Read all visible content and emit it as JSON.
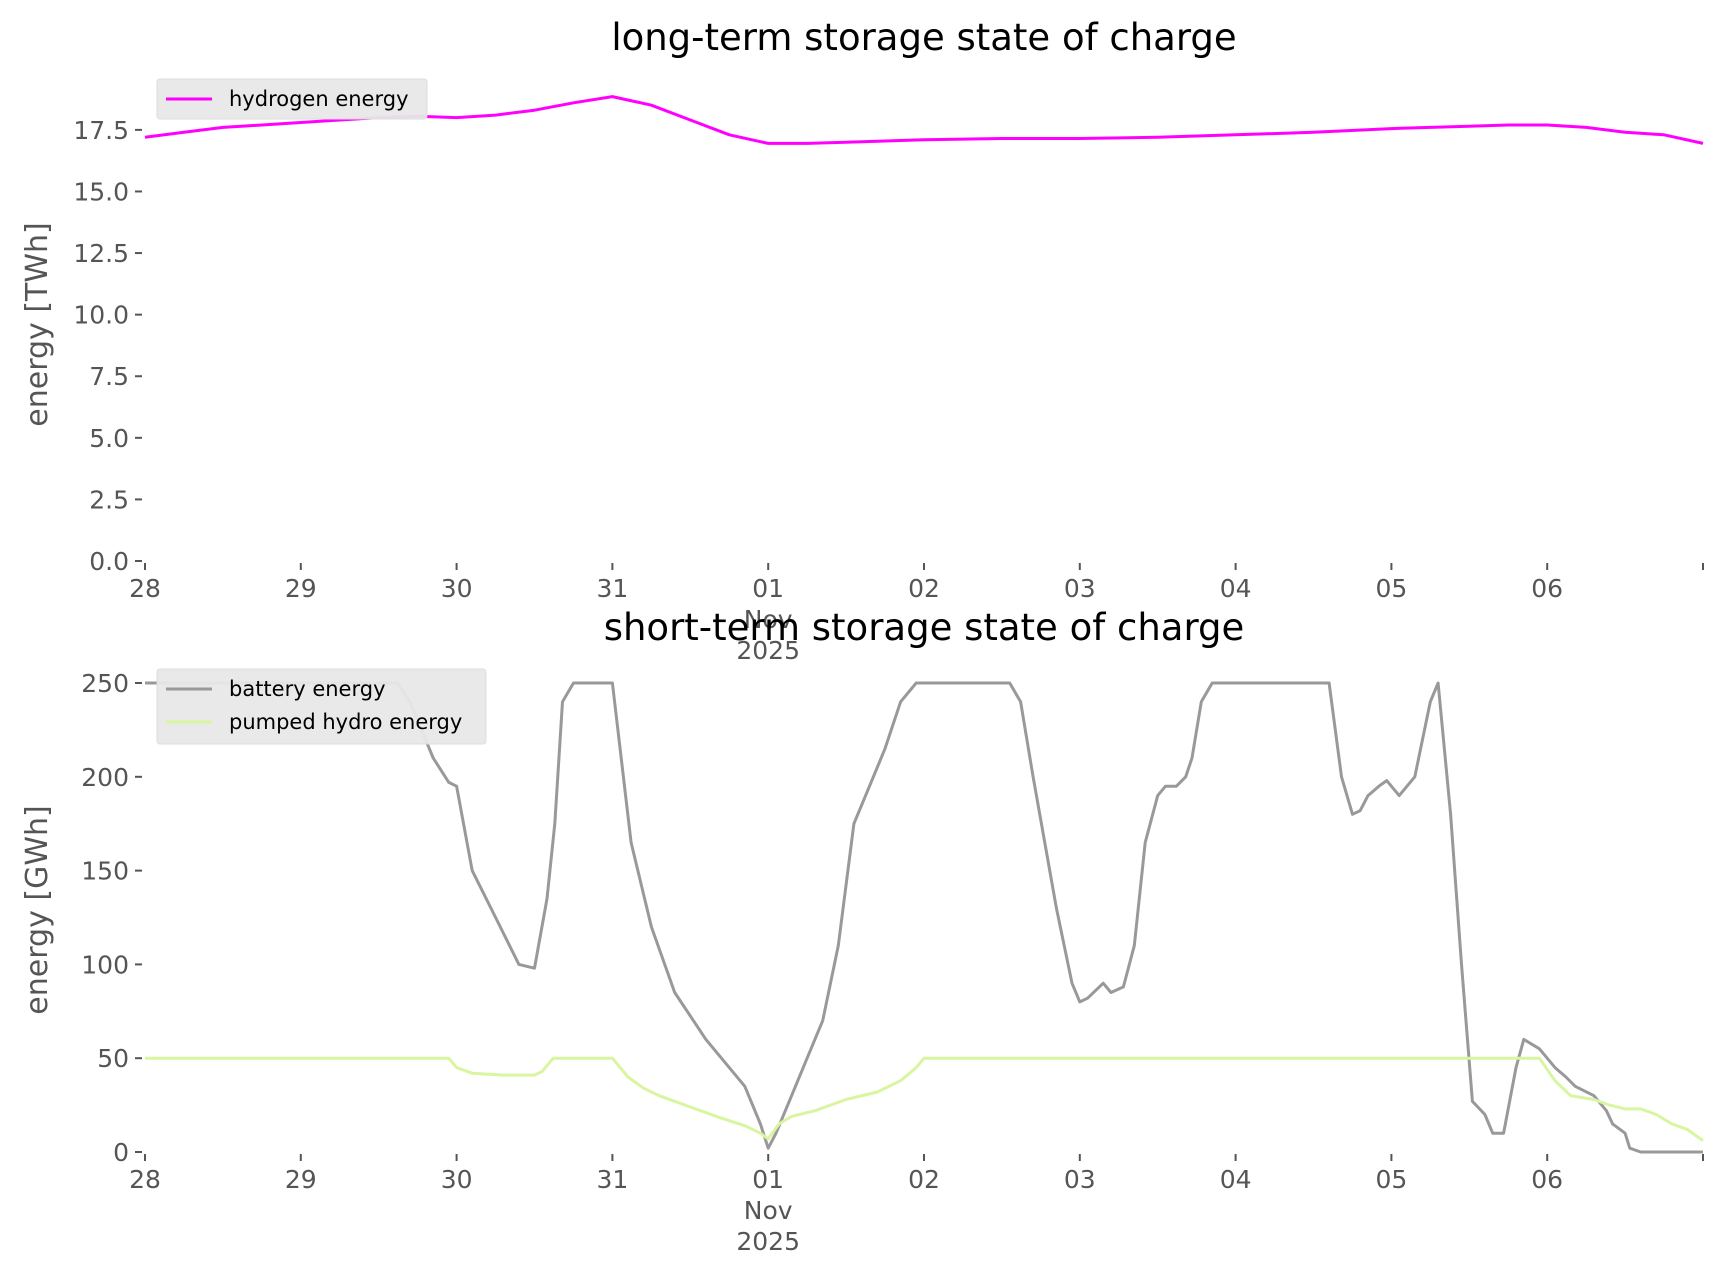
{
  "chart_data": [
    {
      "type": "line",
      "title": "long-term storage state of charge",
      "ylabel": "energy [TWh]",
      "xlabel": "",
      "xlim": [
        "2025-10-28",
        "2025-11-07"
      ],
      "ylim": [
        0,
        19.2
      ],
      "yticks": [
        "0.0",
        "2.5",
        "5.0",
        "7.5",
        "10.0",
        "12.5",
        "15.0",
        "17.5"
      ],
      "xticks": [
        "28",
        "29",
        "30",
        "31",
        "01\nNov\n2025",
        "02",
        "03",
        "04",
        "05",
        "06"
      ],
      "grid": false,
      "legend_position": "top-left",
      "series": [
        {
          "name": "hydrogen energy",
          "color": "#ff00ff",
          "x": [
            0,
            0.25,
            0.5,
            0.75,
            1.0,
            1.25,
            1.5,
            1.75,
            2.0,
            2.25,
            2.5,
            2.75,
            3.0,
            3.25,
            3.5,
            3.75,
            4.0,
            4.25,
            4.5,
            4.75,
            5.0,
            5.5,
            6.0,
            6.5,
            7.0,
            7.5,
            8.0,
            8.25,
            8.5,
            8.75,
            9.0,
            9.25,
            9.5,
            9.75,
            10.0
          ],
          "y": [
            17.2,
            17.4,
            17.6,
            17.7,
            17.8,
            17.9,
            18.0,
            18.05,
            18.0,
            18.1,
            18.3,
            18.6,
            18.85,
            18.5,
            17.9,
            17.3,
            16.95,
            16.95,
            17.0,
            17.05,
            17.1,
            17.15,
            17.15,
            17.2,
            17.3,
            17.4,
            17.55,
            17.6,
            17.65,
            17.7,
            17.7,
            17.6,
            17.4,
            17.3,
            16.95
          ]
        }
      ]
    },
    {
      "type": "line",
      "title": "short-term storage state of charge",
      "ylabel": "energy [GWh]",
      "xlabel": "",
      "xlim": [
        "2025-10-28",
        "2025-11-07"
      ],
      "ylim": [
        0,
        258
      ],
      "yticks": [
        "0",
        "50",
        "100",
        "150",
        "200",
        "250"
      ],
      "xticks": [
        "28",
        "29",
        "30",
        "31",
        "01\nNov\n2025",
        "02",
        "03",
        "04",
        "05",
        "06"
      ],
      "grid": false,
      "legend_position": "top-left",
      "series": [
        {
          "name": "battery energy",
          "color": "#999999",
          "x": [
            0,
            1.0,
            1.62,
            1.7,
            1.85,
            1.95,
            2.0,
            2.1,
            2.25,
            2.4,
            2.5,
            2.58,
            2.63,
            2.68,
            2.75,
            2.8,
            2.87,
            3.0,
            3.12,
            3.25,
            3.4,
            3.6,
            3.85,
            3.95,
            4.0,
            4.05,
            4.15,
            4.25,
            4.35,
            4.45,
            4.55,
            4.65,
            4.75,
            4.85,
            4.95,
            5.0,
            5.55,
            5.62,
            5.7,
            5.85,
            5.95,
            6.0,
            6.05,
            6.15,
            6.2,
            6.28,
            6.35,
            6.42,
            6.5,
            6.55,
            6.62,
            6.68,
            6.72,
            6.78,
            6.85,
            6.92,
            7.0,
            7.6,
            7.68,
            7.75,
            7.8,
            7.85,
            7.92,
            7.97,
            8.05,
            8.15,
            8.25,
            8.3,
            8.38,
            8.45,
            8.52,
            8.6,
            8.65,
            8.72,
            8.8,
            8.85,
            8.95,
            9.05,
            9.12,
            9.18,
            9.3,
            9.38,
            9.42,
            9.5,
            9.53,
            9.6,
            9.65,
            9.7,
            10.0
          ],
          "y": [
            250,
            250,
            250,
            240,
            210,
            197,
            195,
            150,
            125,
            100,
            98,
            135,
            175,
            240,
            250,
            250,
            250,
            250,
            165,
            120,
            85,
            60,
            35,
            15,
            2,
            10,
            30,
            50,
            70,
            110,
            175,
            195,
            215,
            240,
            250,
            250,
            250,
            240,
            200,
            130,
            90,
            80,
            82,
            90,
            85,
            88,
            110,
            165,
            190,
            195,
            195,
            200,
            210,
            240,
            250,
            250,
            250,
            250,
            200,
            180,
            182,
            190,
            195,
            198,
            190,
            200,
            240,
            250,
            180,
            100,
            27,
            20,
            10,
            10,
            45,
            60,
            55,
            45,
            40,
            35,
            30,
            22,
            15,
            10,
            2,
            0,
            0,
            0,
            0
          ]
        },
        {
          "name": "pumped hydro energy",
          "color": "#d9f5a0",
          "x": [
            0,
            1.95,
            2.0,
            2.1,
            2.3,
            2.5,
            2.55,
            2.62,
            2.68,
            3.0,
            3.1,
            3.2,
            3.3,
            3.5,
            3.7,
            3.85,
            3.95,
            4.0,
            4.07,
            4.15,
            4.3,
            4.5,
            4.7,
            4.85,
            4.95,
            5.0,
            5.5,
            6.0,
            6.5,
            7.0,
            7.5,
            8.0,
            8.5,
            8.9,
            8.95,
            9.05,
            9.15,
            9.3,
            9.4,
            9.5,
            9.6,
            9.7,
            9.8,
            9.9,
            10.0
          ],
          "y": [
            50,
            50,
            45,
            42,
            41,
            41,
            43,
            50,
            50,
            50,
            40,
            34,
            30,
            24,
            18,
            14,
            10,
            7,
            15,
            19,
            22,
            28,
            32,
            38,
            45,
            50,
            50,
            50,
            50,
            50,
            50,
            50,
            50,
            50,
            50,
            38,
            30,
            28,
            25,
            23,
            23,
            20,
            15,
            12,
            6
          ]
        }
      ]
    }
  ]
}
